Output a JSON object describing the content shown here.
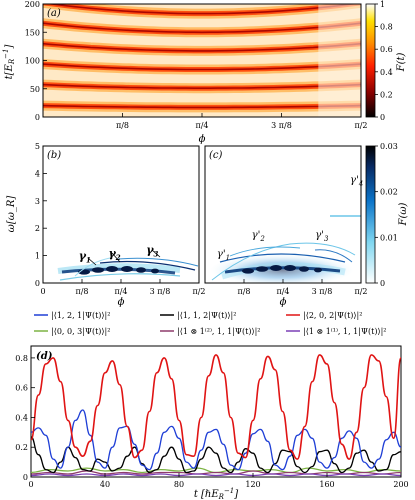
{
  "chart_data": [
    {
      "id": "a",
      "panel_label": "(a)",
      "type": "heatmap",
      "xlabel": "ϕ",
      "ylabel": "t[E₍ᵣ₎⁻¹]",
      "ylabel_main": "t[E",
      "ylabel_sub": "R",
      "ylabel_sup": "−1",
      "ylabel_close": "]",
      "xlim": [
        0,
        1.5708
      ],
      "ylim": [
        0,
        200
      ],
      "xticks": [
        {
          "v": 0.3927,
          "label": "π/8"
        },
        {
          "v": 0.7854,
          "label": "π/4"
        },
        {
          "v": 1.1781,
          "label": "3 π/8"
        },
        {
          "v": 1.5708,
          "label": "π/2"
        }
      ],
      "yticks": [
        0,
        50,
        100,
        150,
        200
      ],
      "colorbar": {
        "label": "F(t)",
        "min": 0,
        "max": 1,
        "ticks": [
          0,
          0.2,
          0.4,
          0.6,
          0.8,
          1
        ],
        "colors": [
          "#000000",
          "#8b0000",
          "#ff2000",
          "#ff8c00",
          "#ffe000",
          "#ffffff"
        ]
      },
      "band_centers": [
        17,
        51,
        84,
        117,
        150,
        183
      ]
    },
    {
      "id": "b",
      "panel_label": "(b)",
      "type": "heatmap",
      "xlabel": "ϕ",
      "ylabel": "ω[ω_R]",
      "xlim": [
        0,
        1.5708
      ],
      "ylim": [
        0,
        5
      ],
      "xticks": [
        {
          "v": 0,
          "label": "0"
        },
        {
          "v": 0.3927,
          "label": "π/8"
        },
        {
          "v": 0.7854,
          "label": "π/4"
        },
        {
          "v": 1.1781,
          "label": "3 π/8"
        },
        {
          "v": 1.5708,
          "label": "π/2"
        }
      ],
      "yticks": [
        0,
        1,
        2,
        3,
        4,
        5
      ],
      "annotations": [
        {
          "text": "γ",
          "sub": "1",
          "x": 0.36,
          "y": 0.85
        },
        {
          "text": "γ",
          "sub": "2",
          "x": 0.66,
          "y": 0.95
        },
        {
          "text": "γ",
          "sub": "3",
          "x": 1.04,
          "y": 1.07
        }
      ]
    },
    {
      "id": "c",
      "panel_label": "(c)",
      "type": "heatmap",
      "xlabel": "ϕ",
      "xlim": [
        0,
        1.5708
      ],
      "ylim": [
        0,
        5
      ],
      "xticks": [
        {
          "v": 0.3927,
          "label": "π/8"
        },
        {
          "v": 0.7854,
          "label": "π/4"
        },
        {
          "v": 1.1781,
          "label": "3 π/8"
        },
        {
          "v": 1.5708,
          "label": "π/2"
        }
      ],
      "colorbar": {
        "label": "F(ω)",
        "min": 0,
        "max": 0.03,
        "ticks": [
          0,
          0.01,
          0.02,
          0.03
        ],
        "colors": [
          "#ffffff",
          "#7fd6f0",
          "#0b74c9",
          "#082a63",
          "#000000"
        ]
      },
      "annotations": [
        {
          "text": "γ'",
          "sub": "1",
          "x": 0.12,
          "y": 0.95
        },
        {
          "text": "γ'",
          "sub": "2",
          "x": 0.47,
          "y": 1.65
        },
        {
          "text": "γ'",
          "sub": "3",
          "x": 1.11,
          "y": 1.65
        },
        {
          "text": "γ'",
          "sub": "4",
          "x": 1.46,
          "y": 3.65
        }
      ]
    },
    {
      "id": "d",
      "panel_label": "(d)",
      "type": "line",
      "xlabel_main": "t [ℏE",
      "xlabel_sub": "R",
      "xlabel_sup": "−1",
      "xlabel_close": "]",
      "xlim": [
        0,
        200
      ],
      "ylim": [
        0,
        0.88
      ],
      "xticks": [
        0,
        40,
        80,
        120,
        160,
        200
      ],
      "yticks": [
        0,
        0.2,
        0.4,
        0.6,
        0.8
      ],
      "legend": [
        {
          "label": "|⟨1, 2, 1|Ψ(t)⟩|²",
          "color": "#1f3fd6"
        },
        {
          "label": "|⟨1, 1, 2|Ψ(t)⟩|²",
          "color": "#000000"
        },
        {
          "label": "|⟨2, 0, 2|Ψ(t)⟩|²",
          "color": "#e01414"
        },
        {
          "label": "|⟨0, 0, 3|Ψ(t)⟩|²",
          "color": "#7cb342"
        },
        {
          "label": "|⟨1 ⊗ 1⁽²⁾, 1, 1|Ψ(t)⟩|²",
          "color": "#8e3b6b"
        },
        {
          "label": "|⟨1 ⊗ 1⁽¹⁾, 1, 1|Ψ(t)⟩|²",
          "color": "#7b3fb5"
        }
      ],
      "series": [
        {
          "name": "|⟨2, 0, 2|Ψ(t)⟩|²",
          "color": "#e01414",
          "x": [
            0,
            4,
            8,
            12,
            16,
            20,
            24,
            28,
            32,
            36,
            40,
            44,
            48,
            52,
            56,
            60,
            64,
            68,
            72,
            76,
            80,
            84,
            88,
            92,
            96,
            100,
            104,
            108,
            112,
            116,
            120,
            124,
            128,
            132,
            136,
            140,
            144,
            148,
            152,
            156,
            160,
            164,
            168,
            172,
            176,
            180,
            184,
            188,
            192,
            196,
            200
          ],
          "y": [
            0.25,
            0.55,
            0.76,
            0.8,
            0.64,
            0.38,
            0.2,
            0.14,
            0.24,
            0.48,
            0.7,
            0.78,
            0.62,
            0.34,
            0.13,
            0.18,
            0.44,
            0.7,
            0.8,
            0.66,
            0.38,
            0.15,
            0.14,
            0.4,
            0.68,
            0.82,
            0.7,
            0.4,
            0.16,
            0.13,
            0.38,
            0.66,
            0.81,
            0.72,
            0.44,
            0.18,
            0.12,
            0.34,
            0.64,
            0.82,
            0.76,
            0.5,
            0.22,
            0.12,
            0.3,
            0.6,
            0.82,
            0.78,
            0.54,
            0.26,
            0.8
          ]
        },
        {
          "name": "|⟨1, 2, 1|Ψ(t)⟩|²",
          "color": "#1f3fd6",
          "x": [
            0,
            4,
            8,
            12,
            16,
            20,
            24,
            28,
            32,
            36,
            40,
            44,
            48,
            52,
            56,
            60,
            64,
            68,
            72,
            76,
            80,
            84,
            88,
            92,
            96,
            100,
            104,
            108,
            112,
            116,
            120,
            124,
            128,
            132,
            136,
            140,
            144,
            148,
            152,
            156,
            160,
            164,
            168,
            172,
            176,
            180,
            184,
            188,
            192,
            196,
            200
          ],
          "y": [
            0.3,
            0.33,
            0.28,
            0.12,
            0.06,
            0.2,
            0.38,
            0.45,
            0.28,
            0.1,
            0.06,
            0.2,
            0.33,
            0.34,
            0.22,
            0.08,
            0.05,
            0.16,
            0.3,
            0.34,
            0.26,
            0.1,
            0.06,
            0.18,
            0.3,
            0.32,
            0.22,
            0.08,
            0.05,
            0.16,
            0.29,
            0.32,
            0.24,
            0.08,
            0.05,
            0.14,
            0.28,
            0.32,
            0.26,
            0.1,
            0.06,
            0.13,
            0.26,
            0.31,
            0.26,
            0.1,
            0.06,
            0.12,
            0.25,
            0.3,
            0.2
          ]
        },
        {
          "name": "|⟨1, 1, 2|Ψ(t)⟩|²",
          "color": "#000000",
          "x": [
            0,
            4,
            8,
            12,
            16,
            20,
            24,
            28,
            32,
            36,
            40,
            44,
            48,
            52,
            56,
            60,
            64,
            68,
            72,
            76,
            80,
            84,
            88,
            92,
            96,
            100,
            104,
            108,
            112,
            116,
            120,
            124,
            128,
            132,
            136,
            140,
            144,
            148,
            152,
            156,
            160,
            164,
            168,
            172,
            176,
            180,
            184,
            188,
            192,
            196,
            200
          ],
          "y": [
            0.27,
            0.15,
            0.05,
            0.03,
            0.1,
            0.2,
            0.13,
            0.05,
            0.04,
            0.12,
            0.1,
            0.04,
            0.06,
            0.14,
            0.2,
            0.09,
            0.03,
            0.05,
            0.14,
            0.2,
            0.12,
            0.03,
            0.04,
            0.12,
            0.2,
            0.16,
            0.06,
            0.03,
            0.1,
            0.19,
            0.16,
            0.06,
            0.03,
            0.09,
            0.18,
            0.17,
            0.07,
            0.03,
            0.07,
            0.17,
            0.18,
            0.09,
            0.03,
            0.06,
            0.16,
            0.18,
            0.1,
            0.04,
            0.05,
            0.15,
            0.17
          ]
        },
        {
          "name": "|⟨0, 0, 3|Ψ(t)⟩|²",
          "color": "#7cb342",
          "x": [
            0,
            10,
            20,
            30,
            40,
            50,
            60,
            70,
            80,
            90,
            100,
            110,
            120,
            130,
            140,
            150,
            160,
            170,
            180,
            190,
            200
          ],
          "y": [
            0.03,
            0.05,
            0.04,
            0.06,
            0.04,
            0.05,
            0.03,
            0.05,
            0.04,
            0.06,
            0.03,
            0.05,
            0.04,
            0.05,
            0.03,
            0.06,
            0.04,
            0.05,
            0.03,
            0.05,
            0.04
          ]
        },
        {
          "name": "|⟨1 ⊗ 1⁽²⁾, 1, 1|Ψ(t)⟩|²",
          "color": "#8e3b6b",
          "x": [
            0,
            10,
            20,
            30,
            40,
            50,
            60,
            70,
            80,
            90,
            100,
            110,
            120,
            130,
            140,
            150,
            160,
            170,
            180,
            190,
            200
          ],
          "y": [
            0.02,
            0.03,
            0.02,
            0.04,
            0.02,
            0.03,
            0.02,
            0.03,
            0.03,
            0.02,
            0.03,
            0.02,
            0.04,
            0.02,
            0.03,
            0.02,
            0.03,
            0.02,
            0.03,
            0.02,
            0.03
          ]
        },
        {
          "name": "|⟨1 ⊗ 1⁽¹⁾, 1, 1|Ψ(t)⟩|²",
          "color": "#7b3fb5",
          "x": [
            0,
            10,
            20,
            30,
            40,
            50,
            60,
            70,
            80,
            90,
            100,
            110,
            120,
            130,
            140,
            150,
            160,
            170,
            180,
            190,
            200
          ],
          "y": [
            0.01,
            0.02,
            0.01,
            0.02,
            0.01,
            0.02,
            0.01,
            0.02,
            0.01,
            0.02,
            0.01,
            0.02,
            0.01,
            0.02,
            0.01,
            0.02,
            0.01,
            0.02,
            0.01,
            0.02,
            0.01
          ]
        }
      ]
    }
  ]
}
